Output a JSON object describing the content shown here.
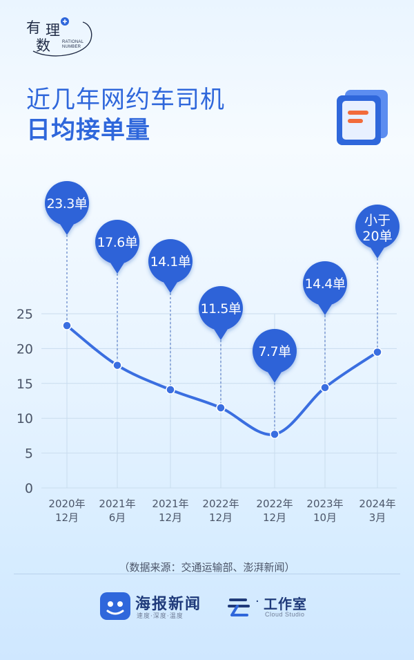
{
  "logo": {
    "chars": [
      "有",
      "理",
      "数"
    ],
    "sub_line1": "RATIONAL",
    "sub_line2": "NUMBER"
  },
  "title": {
    "line1": "近几年网约车司机",
    "line2": "日均接单量"
  },
  "icons": {
    "document": "document-icon",
    "brand1": "haibao-app-icon",
    "brand2": "cloud-studio-icon"
  },
  "colors": {
    "accent": "#2f67db",
    "line": "#3a6ee0",
    "pin": "#2e63d8",
    "grid": "#c9dcee"
  },
  "chart_data": {
    "type": "line",
    "title": "近几年网约车司机日均接单量",
    "x": [
      "2020年\n12月",
      "2021年\n6月",
      "2021年\n12月",
      "2022年\n12月",
      "2022年\n12月",
      "2023年\n10月",
      "2024年\n3月"
    ],
    "x_line1": [
      "2020年",
      "2021年",
      "2021年",
      "2022年",
      "2022年",
      "2023年",
      "2024年"
    ],
    "x_line2": [
      "12月",
      "6月",
      "12月",
      "12月",
      "12月",
      "10月",
      "3月"
    ],
    "values": [
      23.3,
      17.6,
      14.1,
      11.5,
      7.7,
      14.4,
      19.5
    ],
    "data_labels": [
      "23.3单",
      "17.6单",
      "14.1单",
      "11.5单",
      "7.7单",
      "14.4单",
      "小于\n20单"
    ],
    "label_line1": [
      "23.3单",
      "17.6单",
      "14.1单",
      "11.5单",
      "7.7单",
      "14.4单",
      "小于"
    ],
    "label_line2": [
      "",
      "",
      "",
      "",
      "",
      "",
      "20单"
    ],
    "y_ticks": [
      0,
      5,
      10,
      15,
      20,
      25
    ],
    "ylim": [
      0,
      25
    ],
    "grid": true,
    "legend": "none"
  },
  "source": "（数据来源：交通运输部、澎湃新闻）",
  "footer": {
    "brand1_name": "海报新闻",
    "brand1_slogan": "速度·深度·温度",
    "brand2_dot": "·",
    "brand2_name": "工作室",
    "brand2_sub": "Cloud Studio"
  }
}
